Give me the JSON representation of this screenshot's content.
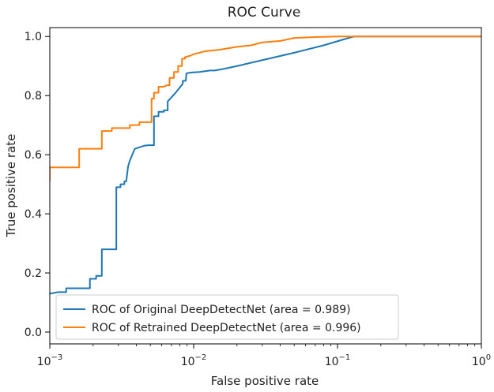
{
  "chart_data": {
    "type": "line",
    "title": "ROC Curve",
    "xlabel": "False positive rate",
    "ylabel": "True positive rate",
    "xscale": "log",
    "xlim": [
      0.001,
      1
    ],
    "ylim": [
      -0.04,
      1.03
    ],
    "grid": false,
    "legend_position": "lower-left",
    "xticks": [
      {
        "value": 0.001,
        "label_base": "10",
        "label_exp": "−3"
      },
      {
        "value": 0.01,
        "label_base": "10",
        "label_exp": "−2"
      },
      {
        "value": 0.1,
        "label_base": "10",
        "label_exp": "−1"
      },
      {
        "value": 1,
        "label_base": "10",
        "label_exp": "0"
      }
    ],
    "yticks": [
      {
        "value": 0.0,
        "label": "0.0"
      },
      {
        "value": 0.2,
        "label": "0.2"
      },
      {
        "value": 0.4,
        "label": "0.4"
      },
      {
        "value": 0.6,
        "label": "0.6"
      },
      {
        "value": 0.8,
        "label": "0.8"
      },
      {
        "value": 1.0,
        "label": "1.0"
      }
    ],
    "series": [
      {
        "name": "ROC of Original DeepDetectNet (area = 0.989)",
        "color": "#1f77b4",
        "x": [
          0.001,
          0.00115,
          0.0013,
          0.0013,
          0.0019,
          0.0019,
          0.0021,
          0.0021,
          0.0023,
          0.0023,
          0.0029,
          0.0029,
          0.0031,
          0.0031,
          0.0033,
          0.0033,
          0.0034,
          0.0035,
          0.0036,
          0.0036,
          0.0039,
          0.0039,
          0.0045,
          0.0048,
          0.0053,
          0.0053,
          0.0057,
          0.0057,
          0.0062,
          0.0062,
          0.0066,
          0.0066,
          0.0075,
          0.0084,
          0.0084,
          0.0088,
          0.0089,
          0.0089,
          0.0095,
          0.011,
          0.013,
          0.014,
          0.016,
          0.02,
          0.03,
          0.05,
          0.08,
          0.11,
          0.13,
          0.2,
          0.5,
          1.0
        ],
        "y": [
          0.13,
          0.135,
          0.135,
          0.148,
          0.148,
          0.18,
          0.18,
          0.19,
          0.19,
          0.28,
          0.28,
          0.49,
          0.49,
          0.5,
          0.5,
          0.51,
          0.51,
          0.56,
          0.58,
          0.58,
          0.62,
          0.62,
          0.63,
          0.632,
          0.632,
          0.73,
          0.73,
          0.745,
          0.745,
          0.75,
          0.75,
          0.78,
          0.81,
          0.84,
          0.85,
          0.85,
          0.87,
          0.875,
          0.878,
          0.88,
          0.885,
          0.885,
          0.89,
          0.9,
          0.92,
          0.945,
          0.97,
          0.99,
          1.0,
          1.0,
          1.0,
          1.0
        ]
      },
      {
        "name": "ROC of Retrained DeepDetectNet (area = 0.996)",
        "color": "#ff7f0e",
        "x": [
          0.001,
          0.001,
          0.0016,
          0.0016,
          0.0023,
          0.0023,
          0.0027,
          0.0027,
          0.0036,
          0.0036,
          0.0042,
          0.0042,
          0.0051,
          0.0051,
          0.0053,
          0.0053,
          0.0057,
          0.0057,
          0.0062,
          0.0065,
          0.0068,
          0.0068,
          0.0073,
          0.0073,
          0.0078,
          0.0078,
          0.0083,
          0.0083,
          0.0087,
          0.0087,
          0.0095,
          0.01,
          0.012,
          0.015,
          0.02,
          0.025,
          0.03,
          0.04,
          0.05,
          0.07,
          0.1,
          0.2,
          1.0
        ],
        "y": [
          0.51,
          0.557,
          0.557,
          0.62,
          0.62,
          0.68,
          0.68,
          0.69,
          0.69,
          0.7,
          0.7,
          0.71,
          0.71,
          0.79,
          0.79,
          0.81,
          0.81,
          0.83,
          0.83,
          0.835,
          0.835,
          0.86,
          0.86,
          0.88,
          0.88,
          0.9,
          0.9,
          0.925,
          0.925,
          0.93,
          0.935,
          0.94,
          0.95,
          0.955,
          0.965,
          0.97,
          0.98,
          0.985,
          0.995,
          0.998,
          1.0,
          1.0,
          1.0
        ]
      }
    ]
  }
}
